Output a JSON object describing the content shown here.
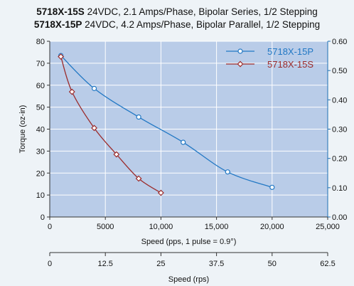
{
  "titles": [
    {
      "model": "5718X-15S",
      "spec": " 24VDC, 2.1 Amps/Phase, Bipolar Series, 1/2 Stepping"
    },
    {
      "model": "5718X-15P",
      "spec": " 24VDC, 4.2 Amps/Phase, Bipolar Parallel, 1/2 Stepping"
    }
  ],
  "chart_data": {
    "type": "line",
    "title": "",
    "xlabel": "Speed (pps, 1 pulse = 0.9°)",
    "ylabel": "Torque (oz-in)",
    "x2label": "Speed (rps)",
    "xlim": [
      0,
      25000
    ],
    "ylim": [
      0,
      80
    ],
    "y2lim": [
      0,
      0.6
    ],
    "xticks": [
      "0",
      "5000",
      "10,000",
      "15,000",
      "20,000",
      "25,000"
    ],
    "xtick_values": [
      0,
      5000,
      10000,
      15000,
      20000,
      25000
    ],
    "yticks": [
      "0",
      "10",
      "20",
      "30",
      "40",
      "50",
      "60",
      "70",
      "80"
    ],
    "ytick_values": [
      0,
      10,
      20,
      30,
      40,
      50,
      60,
      70,
      80
    ],
    "y2ticks": [
      "0.00",
      "0.10",
      "0.20",
      "0.30",
      "0.40",
      "0.50",
      "0.60"
    ],
    "y2tick_values": [
      0,
      0.1,
      0.2,
      0.3,
      0.4,
      0.5,
      0.6
    ],
    "x2ticks": [
      "0",
      "12.5",
      "25",
      "37.5",
      "50",
      "62.5"
    ],
    "x2tick_values": [
      0,
      12.5,
      25,
      37.5,
      50,
      62.5
    ],
    "x2lim": [
      0,
      62.5
    ],
    "grid": true,
    "legend_position": "top-right",
    "series": [
      {
        "name": "5718X-15P",
        "color": "#2278c4",
        "marker": "circle",
        "x": [
          1000,
          4000,
          8000,
          12000,
          16000,
          20000
        ],
        "y": [
          73.5,
          58.5,
          45.5,
          34,
          20.5,
          13.5
        ]
      },
      {
        "name": "5718X-15S",
        "color": "#9b2b2b",
        "marker": "diamond",
        "x": [
          1000,
          2000,
          4000,
          6000,
          8000,
          10000
        ],
        "y": [
          73,
          57,
          40.5,
          28.5,
          17.5,
          11
        ]
      }
    ],
    "colors": {
      "plot_bg": "#b9cce8",
      "grid": "#ffffff",
      "right_axis": "#1f6fb3"
    }
  }
}
